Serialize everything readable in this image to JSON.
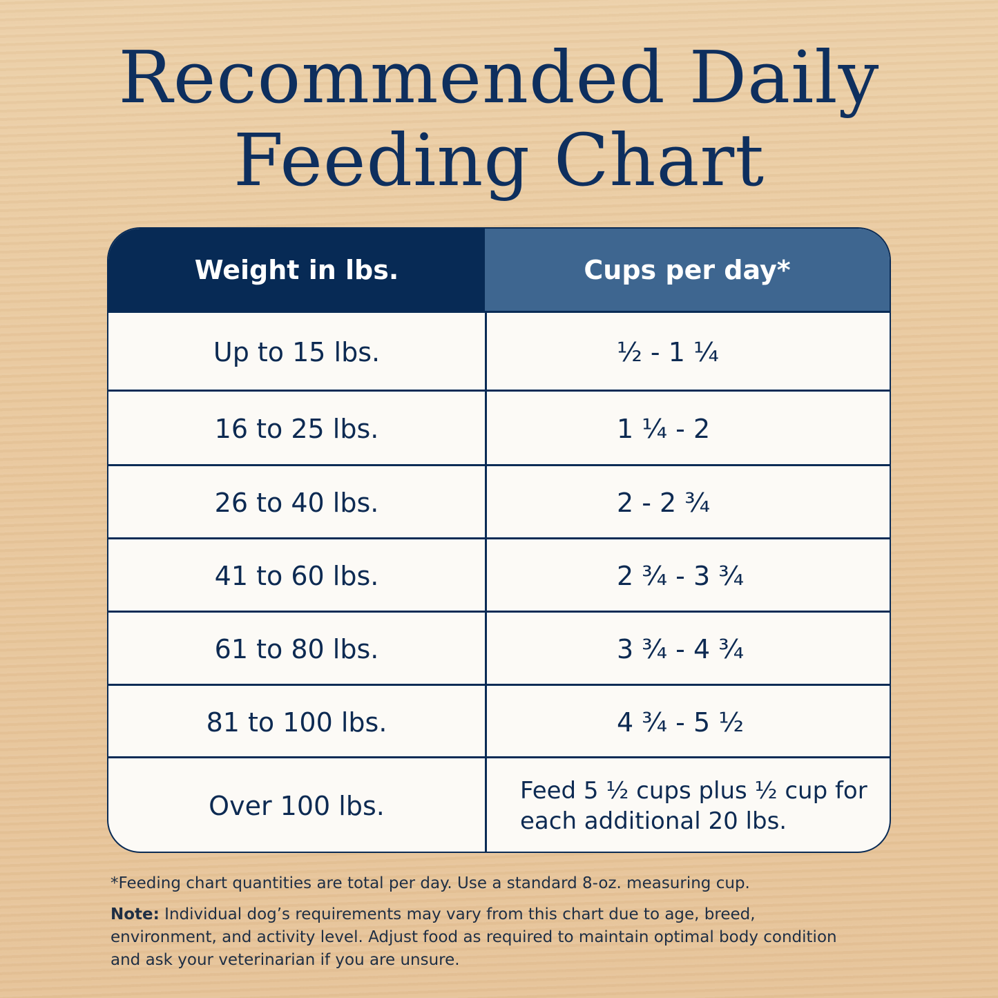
{
  "title": {
    "line1": "Recommended Daily",
    "line2": "Feeding Chart"
  },
  "colors": {
    "header_dark": "#072a55",
    "header_light": "#3e6690",
    "text": "#0d2a52",
    "background": "#e9c89d"
  },
  "table": {
    "headers": [
      "Weight in lbs.",
      "Cups per day*"
    ],
    "rows": [
      {
        "weight": "Up to 15 lbs.",
        "cups": "½ - 1 ¼"
      },
      {
        "weight": "16 to 25 lbs.",
        "cups": "1 ¼ - 2"
      },
      {
        "weight": "26 to 40 lbs.",
        "cups": "2 - 2 ¾"
      },
      {
        "weight": "41 to 60 lbs.",
        "cups": "2 ¾ - 3 ¾"
      },
      {
        "weight": "61 to 80 lbs.",
        "cups": "3 ¾ - 4 ¾"
      },
      {
        "weight": "81 to 100 lbs.",
        "cups": "4 ¾ - 5 ½"
      },
      {
        "weight": "Over 100 lbs.",
        "cups": "Feed 5 ½ cups plus ½ cup for each additional 20 lbs."
      }
    ]
  },
  "footnote": "*Feeding chart quantities are total per day. Use a standard 8-oz. measuring cup.",
  "note": {
    "label": "Note:",
    "text": " Individual dog’s requirements may vary from this chart due to age, breed, environment, and activity level. Adjust food as required to maintain optimal body condition and ask your veterinarian if you are unsure."
  }
}
